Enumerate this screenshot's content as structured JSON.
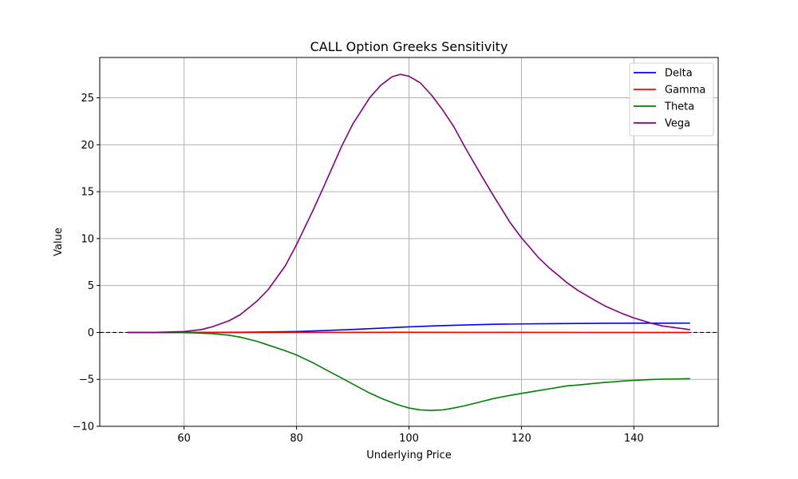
{
  "chart_data": {
    "type": "line",
    "title": "CALL Option Greeks Sensitivity",
    "xlabel": "Underlying Price",
    "ylabel": "Value",
    "xlim": [
      45,
      155
    ],
    "ylim": [
      -10,
      29.3
    ],
    "xticks": [
      60,
      80,
      100,
      120,
      140
    ],
    "xtick_labels": [
      "60",
      "80",
      "100",
      "120",
      "140"
    ],
    "yticks": [
      -10,
      -5,
      0,
      5,
      10,
      15,
      20,
      25
    ],
    "ytick_labels": [
      "−10",
      "−5",
      "0",
      "5",
      "10",
      "15",
      "20",
      "25"
    ],
    "grid": true,
    "legend": "top-right",
    "reference_line": {
      "y": 0,
      "style": "dashed",
      "color": "#000000"
    },
    "series": [
      {
        "name": "Delta",
        "color": "#0000ff",
        "x": [
          50,
          55,
          60,
          65,
          70,
          75,
          80,
          85,
          90,
          95,
          100,
          105,
          110,
          115,
          120,
          125,
          130,
          135,
          140,
          145,
          150
        ],
        "y": [
          0.0,
          0.0,
          0.0,
          0.01,
          0.02,
          0.05,
          0.1,
          0.2,
          0.32,
          0.46,
          0.6,
          0.71,
          0.8,
          0.87,
          0.91,
          0.94,
          0.96,
          0.975,
          0.985,
          0.99,
          0.995
        ]
      },
      {
        "name": "Gamma",
        "color": "#ff0000",
        "x": [
          50,
          60,
          70,
          80,
          90,
          100,
          110,
          120,
          130,
          140,
          150
        ],
        "y": [
          0.0,
          0.0,
          0.001,
          0.005,
          0.012,
          0.018,
          0.015,
          0.009,
          0.005,
          0.002,
          0.001
        ]
      },
      {
        "name": "Theta",
        "color": "#008000",
        "x": [
          50,
          55,
          60,
          62,
          65,
          68,
          70,
          73,
          75,
          78,
          80,
          83,
          85,
          88,
          90,
          93,
          95,
          98,
          100,
          102,
          104,
          106,
          108,
          110,
          113,
          115,
          118,
          120,
          123,
          125,
          128,
          130,
          133,
          135,
          138,
          140,
          143,
          145,
          150
        ],
        "y": [
          0.0,
          0.0,
          -0.02,
          -0.05,
          -0.12,
          -0.3,
          -0.5,
          -0.95,
          -1.35,
          -1.95,
          -2.4,
          -3.25,
          -3.9,
          -4.85,
          -5.5,
          -6.45,
          -7.0,
          -7.7,
          -8.05,
          -8.25,
          -8.3,
          -8.25,
          -8.05,
          -7.8,
          -7.35,
          -7.05,
          -6.7,
          -6.5,
          -6.2,
          -6.0,
          -5.7,
          -5.6,
          -5.42,
          -5.32,
          -5.18,
          -5.11,
          -5.02,
          -4.98,
          -4.92
        ]
      },
      {
        "name": "Vega",
        "color": "#800080",
        "x": [
          50,
          55,
          60,
          63,
          65,
          68,
          70,
          73,
          75,
          78,
          80,
          83,
          85,
          88,
          90,
          93,
          95,
          97,
          98.5,
          100,
          102,
          104,
          106,
          108,
          110,
          113,
          115,
          118,
          120,
          123,
          125,
          128,
          130,
          133,
          135,
          138,
          140,
          143,
          145,
          150
        ],
        "y": [
          0.0,
          0.01,
          0.1,
          0.3,
          0.6,
          1.25,
          1.9,
          3.35,
          4.6,
          7.1,
          9.35,
          13.1,
          15.75,
          19.8,
          22.2,
          25.0,
          26.35,
          27.25,
          27.5,
          27.3,
          26.6,
          25.3,
          23.7,
          21.9,
          19.7,
          16.6,
          14.6,
          11.7,
          10.1,
          8.0,
          6.85,
          5.35,
          4.5,
          3.45,
          2.78,
          2.0,
          1.55,
          1.0,
          0.7,
          0.3
        ]
      }
    ]
  }
}
